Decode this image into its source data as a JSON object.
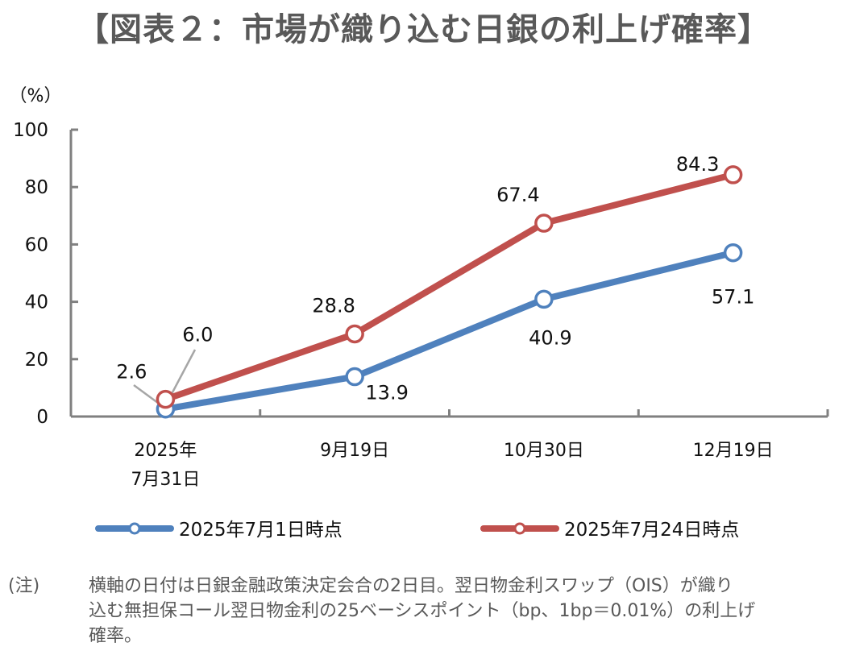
{
  "title": "【図表２：市場が織り込む日銀の利上げ確率】",
  "chart_data": {
    "type": "line",
    "title": "【図表２：市場が織り込む日銀の利上げ確率】",
    "ylabel": "（%）",
    "xlabel": "",
    "ylim": [
      0,
      100
    ],
    "yticks": [
      "0",
      "20",
      "40",
      "60",
      "80",
      "100"
    ],
    "ytick_values": [
      0,
      20,
      40,
      60,
      80,
      100
    ],
    "categories": [
      [
        "2025年",
        "7月31日"
      ],
      [
        "9月19日"
      ],
      [
        "10月30日"
      ],
      [
        "12月19日"
      ]
    ],
    "grid": false,
    "legend_position": "bottom",
    "series": [
      {
        "name": "2025年7月1日時点",
        "color": "#4f81bd",
        "values": [
          2.6,
          13.9,
          40.9,
          57.1
        ],
        "labels": [
          "2.6",
          "13.9",
          "40.9",
          "57.1"
        ]
      },
      {
        "name": "2025年7月24日時点",
        "color": "#c0504d",
        "values": [
          6.0,
          28.8,
          67.4,
          84.3
        ],
        "labels": [
          "6.0",
          "28.8",
          "67.4",
          "84.3"
        ]
      }
    ]
  },
  "note": {
    "label": "(注)",
    "lines": [
      "横軸の日付は日銀金融政策決定会合の2日目。翌日物金利スワップ（OIS）が織り",
      "込む無担保コール翌日物金利の25ベーシスポイント（bp、1bp＝0.01%）の利上げ",
      "確率。"
    ]
  }
}
